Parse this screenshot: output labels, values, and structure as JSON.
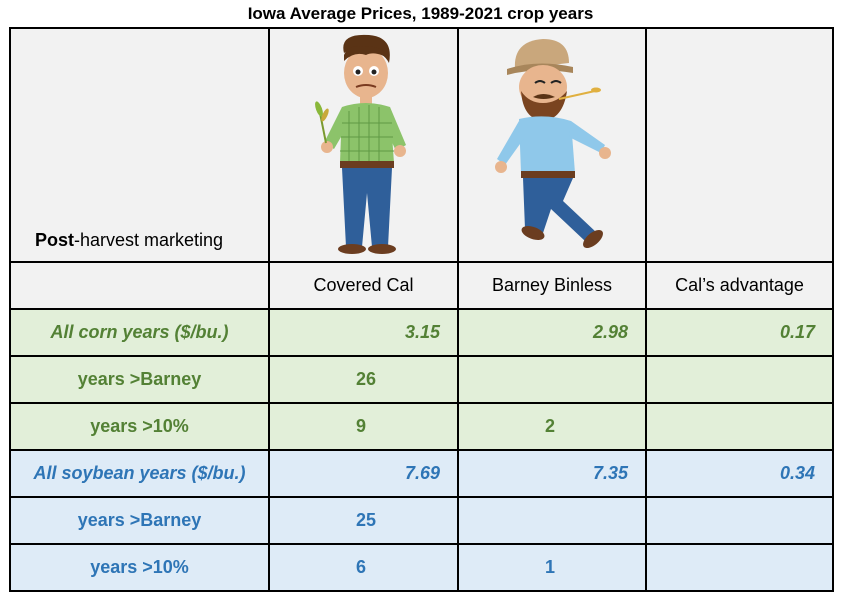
{
  "title": "Iowa Average Prices, 1989-2021 crop years",
  "corner": {
    "bold": "Post",
    "rest": "-harvest marketing"
  },
  "columns": [
    "Covered Cal",
    "Barney Binless",
    "Cal’s advantage"
  ],
  "rows": [
    {
      "label": "All corn years ($/bu.)",
      "cal": "3.15",
      "barney": "2.98",
      "adv": "0.17"
    },
    {
      "label": "years >Barney",
      "cal": "26",
      "barney": "",
      "adv": ""
    },
    {
      "label": "years >10%",
      "cal": "9",
      "barney": "2",
      "adv": ""
    },
    {
      "label": "All soybean years ($/bu.)",
      "cal": "7.69",
      "barney": "7.35",
      "adv": "0.34"
    },
    {
      "label": "years >Barney",
      "cal": "25",
      "barney": "",
      "adv": ""
    },
    {
      "label": "years >10%",
      "cal": "6",
      "barney": "1",
      "adv": ""
    }
  ],
  "colors": {
    "corn_text": "#538135",
    "corn_bg": "#e2efd9",
    "soy_text": "#2e75b6",
    "soy_bg": "#deebf7"
  },
  "icons": [
    "farmer-cal-illustration",
    "farmer-barney-illustration"
  ]
}
